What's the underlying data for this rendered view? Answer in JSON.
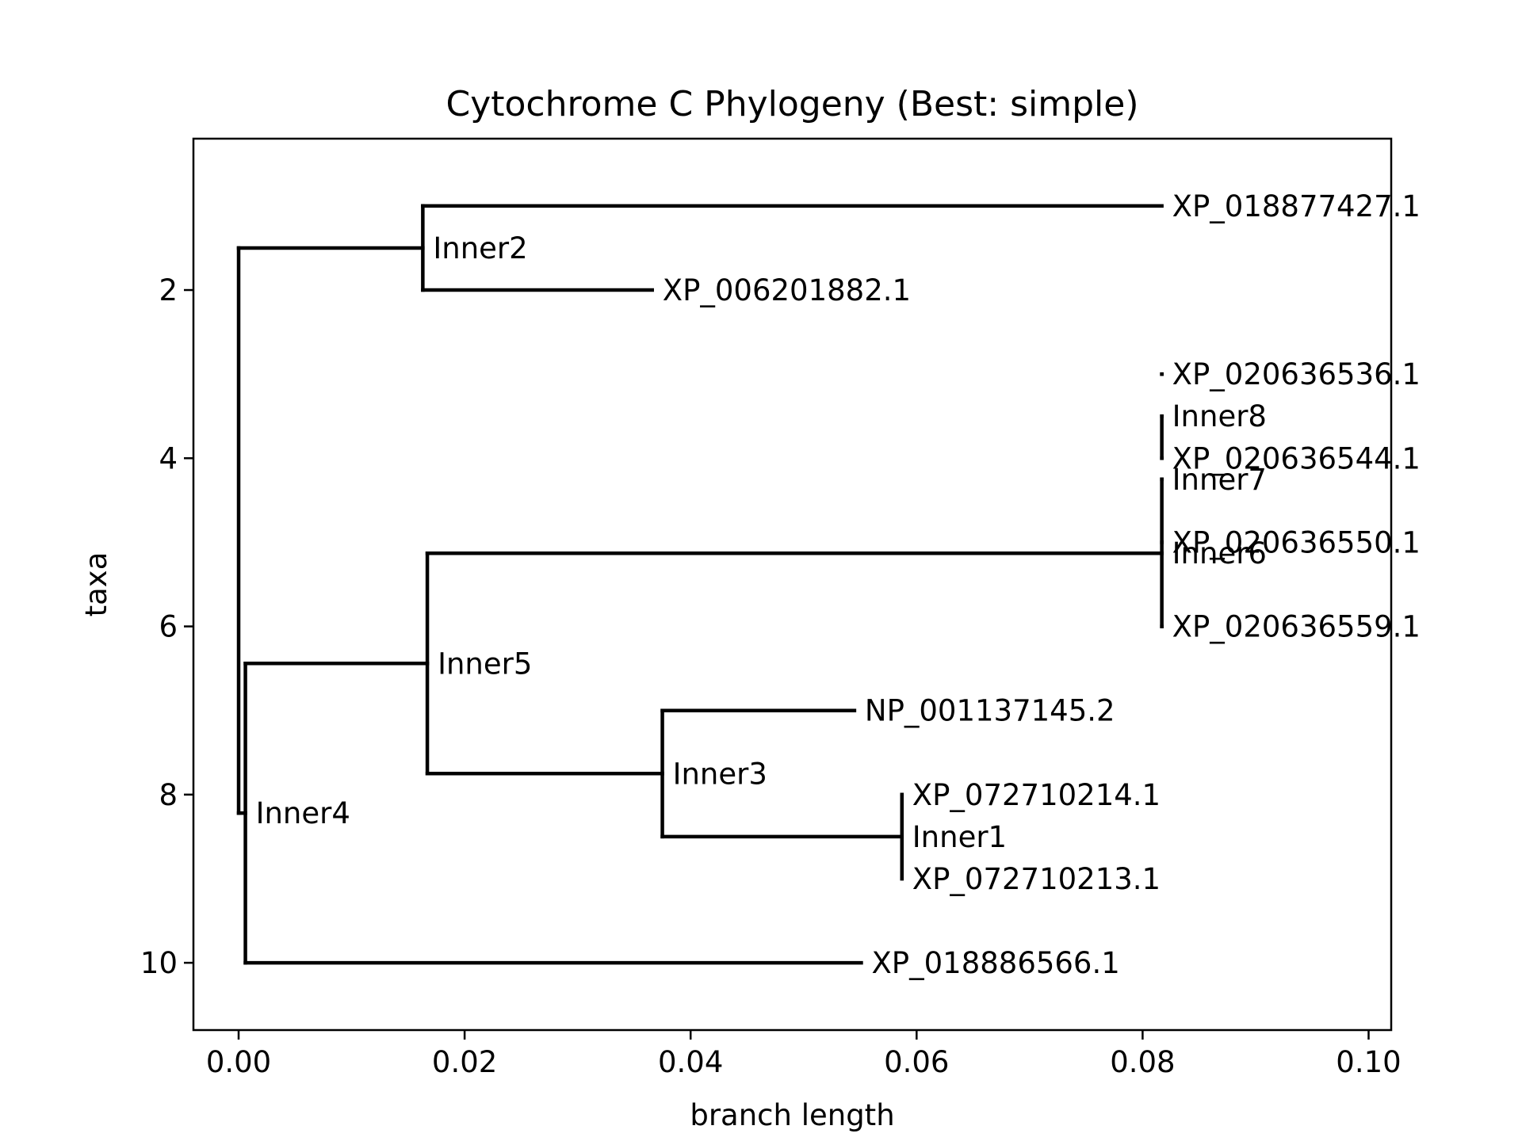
{
  "chart_data": {
    "type": "tree",
    "title": "Cytochrome C Phylogeny (Best: simple)",
    "xlabel": "branch length",
    "ylabel": "taxa",
    "xlim": [
      -0.004,
      0.102
    ],
    "ylim": [
      10.8,
      0.2
    ],
    "x_ticks": [
      0.0,
      0.02,
      0.04,
      0.06,
      0.08,
      0.1
    ],
    "x_tick_labels": [
      "0.00",
      "0.02",
      "0.04",
      "0.06",
      "0.08",
      "0.10"
    ],
    "y_ticks": [
      2,
      4,
      6,
      8,
      10
    ],
    "y_tick_labels": [
      "2",
      "4",
      "6",
      "8",
      "10"
    ],
    "grid": false,
    "line_color": "#000000",
    "nodes": [
      {
        "id": "root",
        "label": "",
        "x": 0.0,
        "y": 8.22,
        "parent": null,
        "show_label": false
      },
      {
        "id": "Inner2",
        "label": "Inner2",
        "x": 0.0163,
        "y": 1.5,
        "parent": "root",
        "show_label": true
      },
      {
        "id": "Inner4",
        "label": "Inner4",
        "x": 0.0006,
        "y": 8.22,
        "parent": "root",
        "show_label": true
      },
      {
        "id": "XP_018877427.1",
        "label": "XP_018877427.1",
        "x": 0.0817,
        "y": 1.0,
        "parent": "Inner2",
        "show_label": true
      },
      {
        "id": "XP_006201882.1",
        "label": "XP_006201882.1",
        "x": 0.0366,
        "y": 2.0,
        "parent": "Inner2",
        "show_label": true
      },
      {
        "id": "Inner5",
        "label": "Inner5",
        "x": 0.0167,
        "y": 6.44,
        "parent": "Inner4",
        "show_label": true
      },
      {
        "id": "XP_018886566.1",
        "label": "XP_018886566.1",
        "x": 0.0551,
        "y": 10.0,
        "parent": "Inner4",
        "show_label": true
      },
      {
        "id": "Inner6",
        "label": "Inner6",
        "x": 0.0817,
        "y": 5.13,
        "parent": "Inner5",
        "show_label": true
      },
      {
        "id": "Inner3",
        "label": "Inner3",
        "x": 0.0375,
        "y": 7.75,
        "parent": "Inner5",
        "show_label": true
      },
      {
        "id": "Inner7",
        "label": "Inner7",
        "x": 0.0817,
        "y": 4.25,
        "parent": "Inner6",
        "show_label": true
      },
      {
        "id": "XP_020636550.1",
        "label": "XP_020636550.1",
        "x": 0.0817,
        "y": 5.0,
        "parent": "Inner6",
        "show_label": true
      },
      {
        "id": "XP_020636559.1",
        "label": "XP_020636559.1",
        "x": 0.0817,
        "y": 6.0,
        "parent": "Inner6",
        "show_label": true
      },
      {
        "id": "Inner8",
        "label": "Inner8",
        "x": 0.0817,
        "y": 3.5,
        "parent": "Inner7",
        "show_label": true
      },
      {
        "id": "XP_020636544.1",
        "label": "XP_020636544.1",
        "x": 0.0817,
        "y": 4.0,
        "parent": "Inner7",
        "show_label": true
      },
      {
        "id": "XP_020636536.1",
        "label": "XP_020636536.1",
        "x": 0.0817,
        "y": 3.0,
        "parent": "Inner8",
        "show_label": true
      },
      {
        "id": "NP_001137145.2",
        "label": "NP_001137145.2",
        "x": 0.0545,
        "y": 7.0,
        "parent": "Inner3",
        "show_label": true
      },
      {
        "id": "Inner1",
        "label": "Inner1",
        "x": 0.0587,
        "y": 8.5,
        "parent": "Inner3",
        "show_label": true
      },
      {
        "id": "XP_072710214.1",
        "label": "XP_072710214.1",
        "x": 0.0587,
        "y": 8.0,
        "parent": "Inner1",
        "show_label": true
      },
      {
        "id": "XP_072710213.1",
        "label": "XP_072710213.1",
        "x": 0.0587,
        "y": 9.0,
        "parent": "Inner1",
        "show_label": true
      }
    ]
  }
}
